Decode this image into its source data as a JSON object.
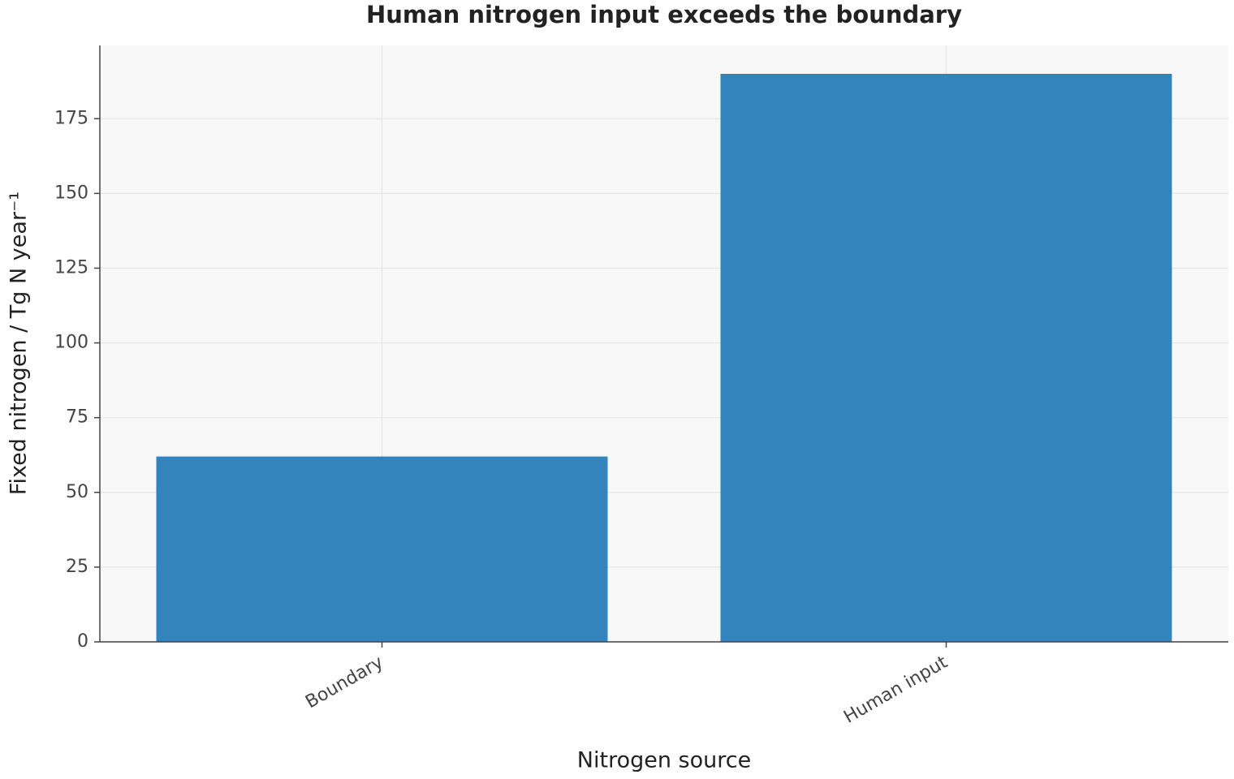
{
  "chart_data": {
    "type": "bar",
    "title": "Human nitrogen input exceeds the boundary",
    "x_label": "Nitrogen source",
    "y_label": "Fixed nitrogen / Tg N year⁻¹",
    "categories": [
      "Boundary",
      "Human input"
    ],
    "values": [
      62,
      190
    ],
    "color": "#3383bc",
    "ylim": [
      0,
      199.5
    ],
    "yticks": [
      0,
      25,
      50,
      75,
      100,
      125,
      150,
      175
    ],
    "grid": true
  }
}
